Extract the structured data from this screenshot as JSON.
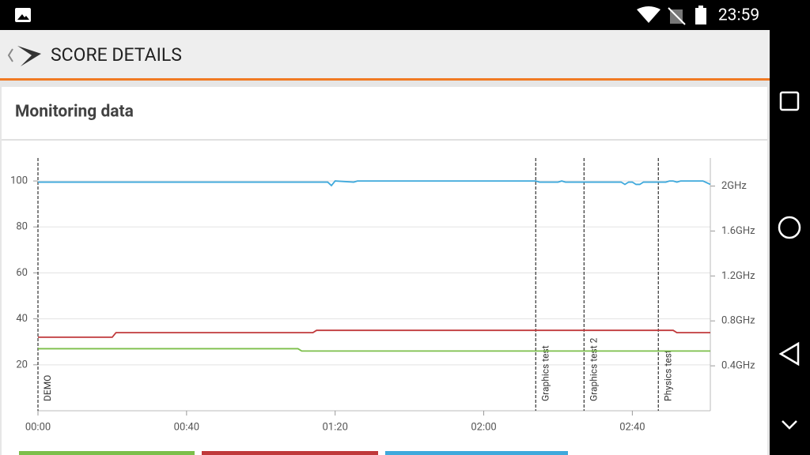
{
  "status_bar": {
    "time": "23:59"
  },
  "app_bar": {
    "title": "SCORE DETAILS"
  },
  "card": {
    "title": "Monitoring data"
  },
  "chart_data": {
    "type": "line",
    "x": [
      0,
      20,
      21,
      70,
      71,
      74,
      75,
      78,
      79,
      80,
      85,
      86,
      134,
      135,
      140,
      141,
      142,
      157,
      158,
      159,
      160,
      161,
      162,
      163,
      169,
      170,
      171,
      172,
      173,
      179,
      181
    ],
    "xlim": [
      0,
      181
    ],
    "xticks": [
      {
        "value": 0,
        "label": "00:00"
      },
      {
        "value": 40,
        "label": "00:40"
      },
      {
        "value": 80,
        "label": "01:20"
      },
      {
        "value": 120,
        "label": "02:00"
      },
      {
        "value": 160,
        "label": "02:40"
      }
    ],
    "ylim": [
      0,
      110
    ],
    "yticks": [
      20,
      40,
      60,
      80,
      100
    ],
    "y2lim": [
      0,
      2.25
    ],
    "y2ticks": [
      {
        "value": 0.4,
        "label": "0.4GHz"
      },
      {
        "value": 0.8,
        "label": "0.8GHz"
      },
      {
        "value": 1.2,
        "label": "1.2GHz"
      },
      {
        "value": 1.6,
        "label": "1.6GHz"
      },
      {
        "value": 2,
        "label": "2GHz"
      }
    ],
    "grid": true,
    "series": [
      {
        "color": "#7cbf4a",
        "values": [
          27,
          27,
          27,
          27,
          26,
          26,
          26,
          26,
          26,
          26,
          26,
          26,
          26,
          26,
          26,
          26,
          26,
          26,
          26,
          26,
          26,
          26,
          26,
          26,
          26,
          26,
          26,
          26,
          26,
          26,
          26
        ]
      },
      {
        "color": "#c0393b",
        "values": [
          32,
          32,
          34,
          34,
          34,
          34,
          35,
          35,
          35,
          35,
          35,
          35,
          35,
          35,
          35,
          35,
          35,
          35,
          35,
          35,
          35,
          35,
          35,
          35,
          35,
          35,
          35,
          34,
          34,
          34,
          34
        ]
      },
      {
        "color": "#3fa9dc",
        "values": [
          99.5,
          99.5,
          99.5,
          99.5,
          99.5,
          99.5,
          99.5,
          99.5,
          98,
          100,
          99.5,
          100,
          100,
          99.5,
          99.5,
          100,
          99.5,
          99.5,
          98.5,
          99.5,
          99.5,
          98.5,
          98.5,
          99.5,
          99.5,
          100,
          100,
          99.5,
          100,
          100,
          98.5
        ]
      }
    ],
    "markers": [
      {
        "x": 0,
        "label": "DEMO"
      },
      {
        "x": 134,
        "label": "Graphics test"
      },
      {
        "x": 147,
        "label": "Graphics test 2"
      },
      {
        "x": 167,
        "label": "Physics test"
      }
    ]
  }
}
